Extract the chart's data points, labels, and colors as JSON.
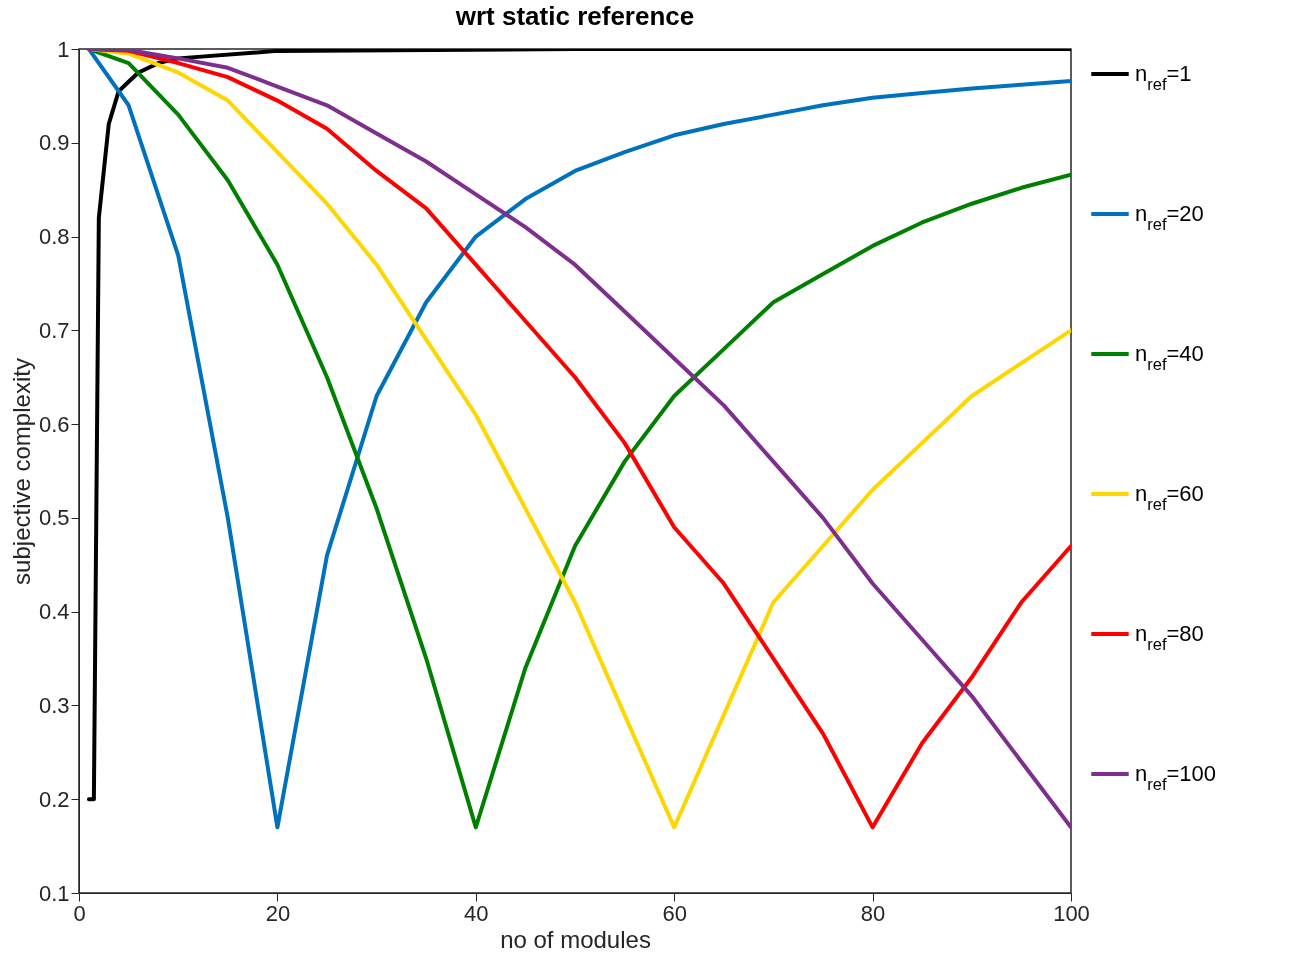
{
  "chart_data": {
    "type": "line",
    "title": "wrt static reference",
    "xlabel": "no of modules",
    "ylabel": "subjective complexity",
    "x": [
      1,
      5,
      10,
      15,
      20,
      25,
      30,
      35,
      40,
      45,
      50,
      55,
      60,
      65,
      70,
      75,
      80,
      85,
      90,
      95,
      100
    ],
    "xlim": [
      0,
      100
    ],
    "xticks": [
      0,
      20,
      40,
      60,
      80,
      100
    ],
    "ylim": [
      0.1,
      1
    ],
    "yticks": [
      0.1,
      0.2,
      0.3,
      0.4,
      0.5,
      0.6,
      0.7,
      0.8,
      0.9,
      1
    ],
    "grid": false,
    "legend": "right",
    "line_style": "solid",
    "series": [
      {
        "name": "n$_{ref}$=1",
        "color": "#000000",
        "x": [
          1,
          1.5,
          2,
          3,
          4,
          5,
          6,
          8,
          10,
          20,
          50,
          100
        ],
        "values": [
          0.2,
          0.2,
          0.82,
          0.92,
          0.955,
          0.965,
          0.975,
          0.985,
          0.99,
          0.998,
          1.0,
          1.0
        ]
      },
      {
        "name": "n$_{ref}$=20",
        "color": "#0072bd",
        "values": [
          1.0,
          0.94,
          0.78,
          0.5,
          0.17,
          0.46,
          0.63,
          0.73,
          0.8,
          0.84,
          0.87,
          0.89,
          0.908,
          0.92,
          0.93,
          0.94,
          0.948,
          0.953,
          0.958,
          0.962,
          0.966
        ]
      },
      {
        "name": "n$_{ref}$=40",
        "color": "#008000",
        "values": [
          1.0,
          0.985,
          0.93,
          0.86,
          0.77,
          0.65,
          0.51,
          0.35,
          0.17,
          0.34,
          0.47,
          0.56,
          0.63,
          0.68,
          0.73,
          0.76,
          0.79,
          0.815,
          0.835,
          0.852,
          0.866
        ]
      },
      {
        "name": "n$_{ref}$=60",
        "color": "#ffd700",
        "values": [
          1.0,
          0.995,
          0.975,
          0.945,
          0.89,
          0.835,
          0.77,
          0.69,
          0.61,
          0.51,
          0.41,
          0.29,
          0.17,
          0.29,
          0.41,
          0.47,
          0.53,
          0.58,
          0.63,
          0.665,
          0.7
        ]
      },
      {
        "name": "n$_{ref}$=80",
        "color": "#ff0000",
        "values": [
          1.0,
          0.998,
          0.985,
          0.97,
          0.945,
          0.915,
          0.87,
          0.83,
          0.77,
          0.71,
          0.65,
          0.58,
          0.49,
          0.43,
          0.35,
          0.27,
          0.17,
          0.26,
          0.33,
          0.41,
          0.47
        ]
      },
      {
        "name": "n$_{ref}$=100",
        "color": "#7e2f8e",
        "values": [
          1.0,
          0.999,
          0.99,
          0.98,
          0.96,
          0.94,
          0.91,
          0.88,
          0.845,
          0.81,
          0.77,
          0.72,
          0.67,
          0.62,
          0.56,
          0.5,
          0.43,
          0.37,
          0.31,
          0.24,
          0.17
        ]
      }
    ]
  }
}
